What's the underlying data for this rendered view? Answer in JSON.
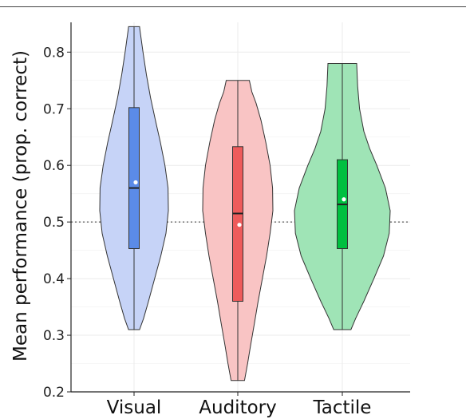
{
  "chart_data": {
    "type": "violin",
    "title": "",
    "xlabel": "",
    "ylabel": "Mean performance (prop. correct)",
    "ylim": [
      0.2,
      0.85
    ],
    "yticks": [
      0.2,
      0.3,
      0.4,
      0.5,
      0.6,
      0.7,
      0.8
    ],
    "ytick_labels": [
      "0.2",
      "0.3",
      "0.4",
      "0.5",
      "0.6",
      "0.7",
      "0.8"
    ],
    "grid": true,
    "reference_line": 0.5,
    "reference_line_style": "dotted",
    "categories": [
      "Visual",
      "Auditory",
      "Tactile"
    ],
    "series": [
      {
        "fill": "#c6d3f7",
        "box_color": "#5b8be8",
        "min": 0.31,
        "q1": 0.453,
        "median": 0.56,
        "mean": 0.57,
        "q3": 0.702,
        "max": 0.845,
        "density": [
          [
            0.31,
            0.16
          ],
          [
            0.33,
            0.28
          ],
          [
            0.36,
            0.42
          ],
          [
            0.4,
            0.6
          ],
          [
            0.44,
            0.78
          ],
          [
            0.48,
            0.93
          ],
          [
            0.52,
            1.0
          ],
          [
            0.56,
            0.99
          ],
          [
            0.6,
            0.9
          ],
          [
            0.64,
            0.77
          ],
          [
            0.68,
            0.62
          ],
          [
            0.72,
            0.48
          ],
          [
            0.76,
            0.36
          ],
          [
            0.8,
            0.26
          ],
          [
            0.84,
            0.17
          ],
          [
            0.845,
            0.16
          ]
        ]
      },
      {
        "fill": "#f9c4c4",
        "box_color": "#ee5b5b",
        "min": 0.22,
        "q1": 0.36,
        "median": 0.515,
        "mean": 0.495,
        "q3": 0.633,
        "max": 0.75,
        "density": [
          [
            0.22,
            0.19
          ],
          [
            0.25,
            0.28
          ],
          [
            0.28,
            0.36
          ],
          [
            0.32,
            0.47
          ],
          [
            0.36,
            0.58
          ],
          [
            0.4,
            0.7
          ],
          [
            0.44,
            0.82
          ],
          [
            0.48,
            0.92
          ],
          [
            0.52,
            1.0
          ],
          [
            0.56,
            0.99
          ],
          [
            0.6,
            0.92
          ],
          [
            0.64,
            0.8
          ],
          [
            0.68,
            0.66
          ],
          [
            0.71,
            0.52
          ],
          [
            0.73,
            0.4
          ],
          [
            0.75,
            0.33
          ]
        ]
      },
      {
        "fill": "#9fe4b6",
        "box_color": "#00c040",
        "min": 0.31,
        "q1": 0.453,
        "median": 0.531,
        "mean": 0.54,
        "q3": 0.61,
        "max": 0.78,
        "density": [
          [
            0.31,
            0.18
          ],
          [
            0.33,
            0.28
          ],
          [
            0.36,
            0.45
          ],
          [
            0.4,
            0.66
          ],
          [
            0.44,
            0.86
          ],
          [
            0.48,
            0.98
          ],
          [
            0.52,
            1.0
          ],
          [
            0.56,
            0.9
          ],
          [
            0.6,
            0.72
          ],
          [
            0.63,
            0.57
          ],
          [
            0.66,
            0.45
          ],
          [
            0.7,
            0.36
          ],
          [
            0.74,
            0.32
          ],
          [
            0.78,
            0.3
          ]
        ]
      }
    ]
  }
}
